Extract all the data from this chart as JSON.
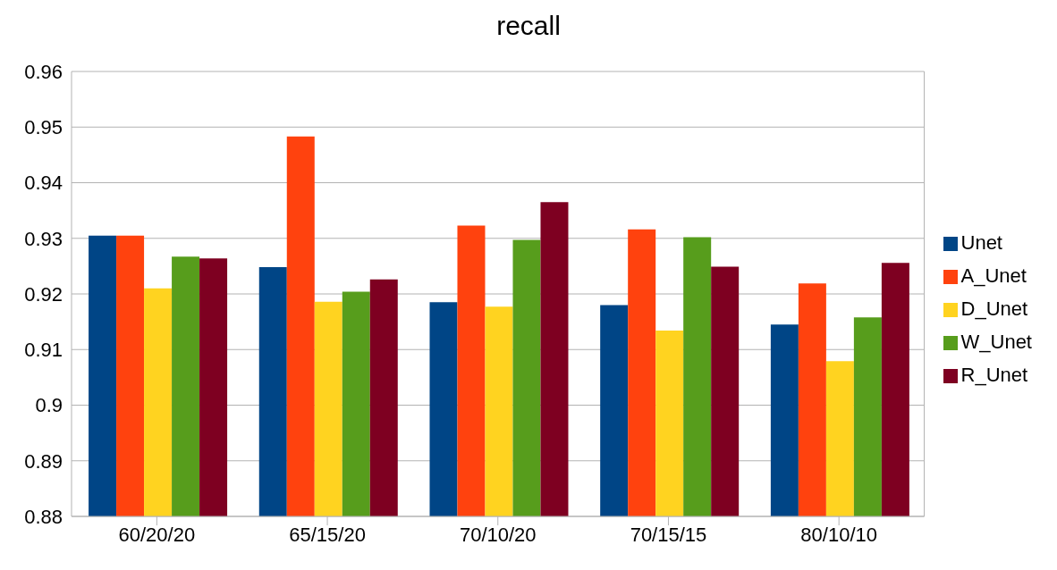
{
  "chart_data": {
    "type": "bar",
    "title": "recall",
    "categories": [
      "60/20/20",
      "65/15/20",
      "70/10/20",
      "70/15/15",
      "80/10/10"
    ],
    "series": [
      {
        "name": "Unet",
        "color": "#004586",
        "values": [
          0.9305,
          0.9248,
          0.9185,
          0.918,
          0.9145
        ]
      },
      {
        "name": "A_Unet",
        "color": "#ff420e",
        "values": [
          0.9305,
          0.9483,
          0.9323,
          0.9316,
          0.9219
        ]
      },
      {
        "name": "D_Unet",
        "color": "#ffd320",
        "values": [
          0.921,
          0.9186,
          0.9177,
          0.9134,
          0.9079
        ]
      },
      {
        "name": "W_Unet",
        "color": "#579d1c",
        "values": [
          0.9267,
          0.9204,
          0.9297,
          0.9302,
          0.9158
        ]
      },
      {
        "name": "R_Unet",
        "color": "#7e0021",
        "values": [
          0.9264,
          0.9226,
          0.9365,
          0.9249,
          0.9256
        ]
      }
    ],
    "ylim": [
      0.88,
      0.96
    ],
    "yticks": [
      0.88,
      0.89,
      0.9,
      0.91,
      0.92,
      0.93,
      0.94,
      0.95,
      0.96
    ],
    "grid": "y",
    "legend": "right"
  }
}
